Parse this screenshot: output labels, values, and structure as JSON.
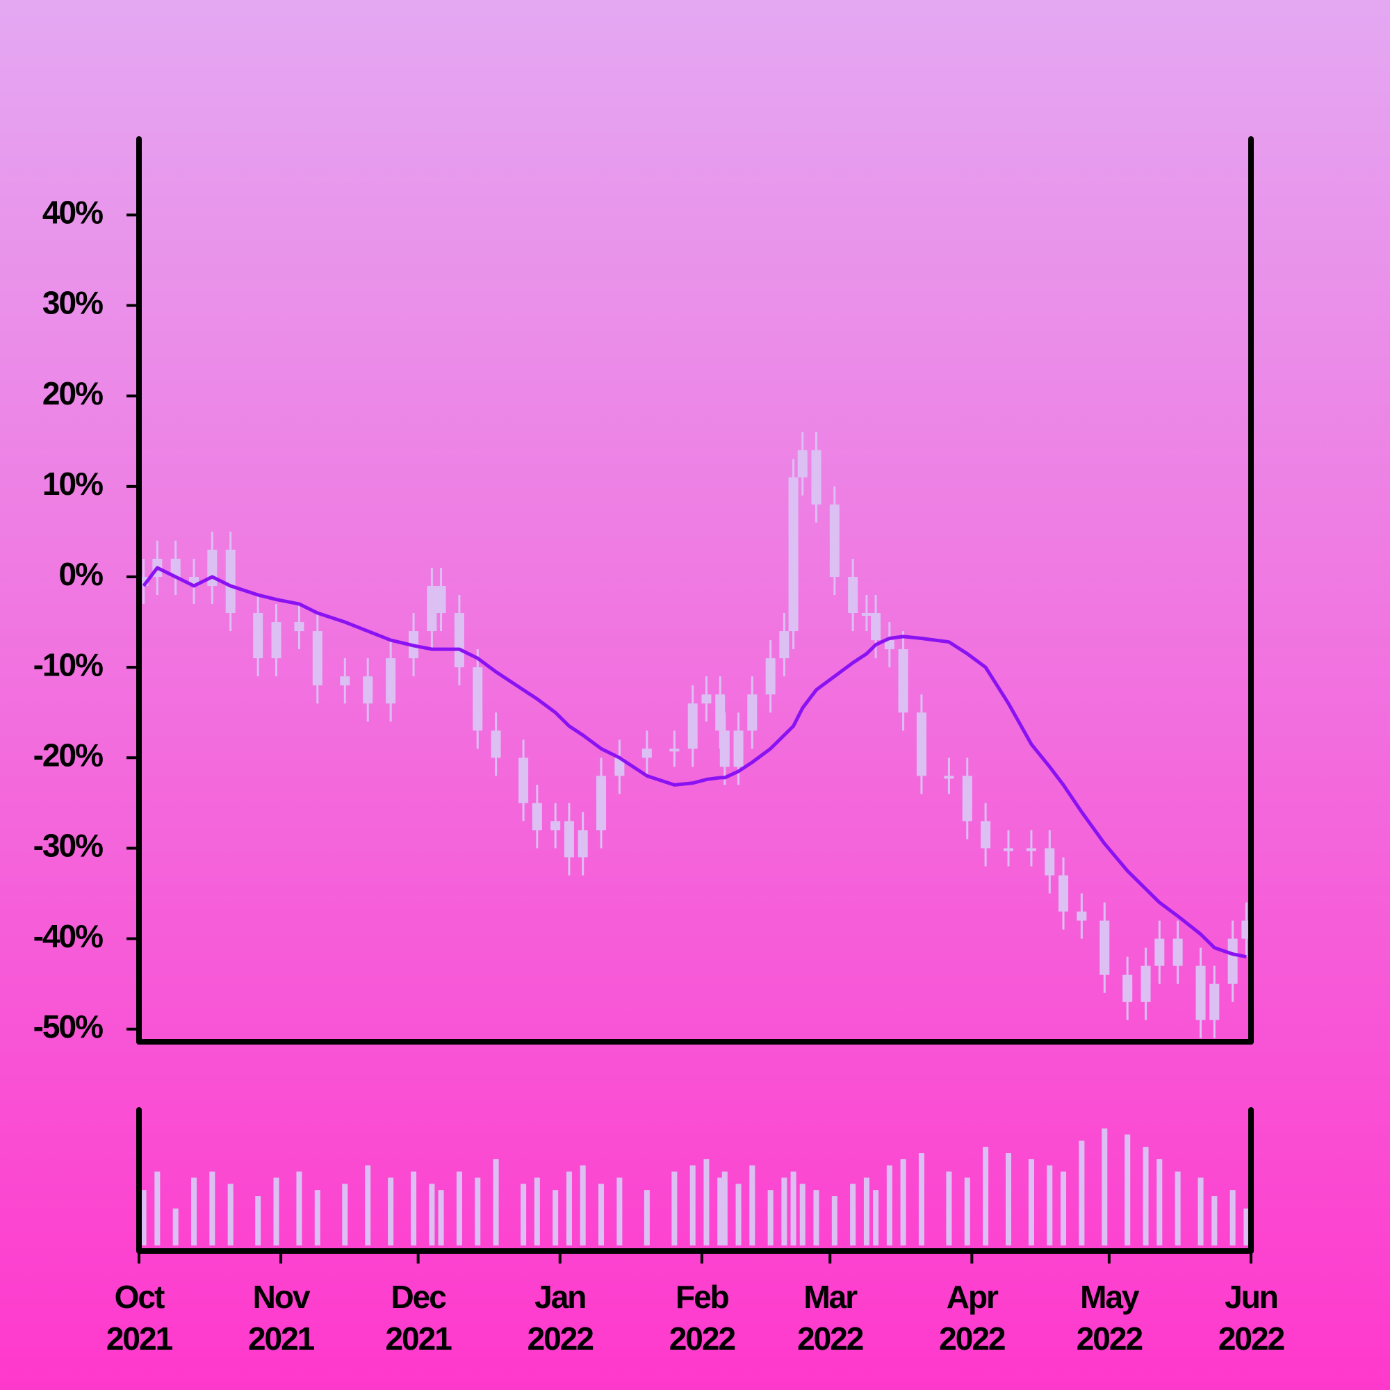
{
  "chart_data": {
    "type": "candlestick",
    "x": [
      1,
      4,
      8,
      12,
      16,
      20,
      26,
      30,
      35,
      39,
      45,
      50,
      55,
      60,
      64,
      66,
      70,
      74,
      78,
      84,
      87,
      91,
      94,
      97,
      101,
      105,
      111,
      117,
      121,
      124,
      127,
      128,
      131,
      134,
      138,
      141,
      143,
      145,
      148,
      152,
      156,
      159,
      161,
      164,
      167,
      171,
      177,
      181,
      185,
      190,
      195,
      199,
      202,
      206,
      211,
      216,
      220,
      223,
      227,
      232,
      235,
      239,
      242
    ],
    "open": [
      -1,
      0,
      2,
      0,
      -1,
      3,
      -4,
      -9,
      -5,
      -6,
      -12,
      -11,
      -14,
      -9,
      -6,
      -1,
      -4,
      -10,
      -17,
      -20,
      -25,
      -28,
      -27,
      -31,
      -28,
      -22,
      -20,
      -19,
      -19,
      -14,
      -13,
      -17,
      -21,
      -17,
      -13,
      -9,
      -6,
      11,
      14,
      8,
      0,
      -4,
      -4,
      -7,
      -8,
      -15,
      -22,
      -22,
      -27,
      -30,
      -30,
      -30,
      -33,
      -37,
      -38,
      -44,
      -47,
      -43,
      -40,
      -43,
      -49,
      -45,
      -40
    ],
    "high": [
      2,
      4,
      4,
      2,
      5,
      5,
      -2,
      -3,
      -3,
      -4,
      -9,
      -9,
      -7,
      -4,
      1,
      1,
      -2,
      -8,
      -15,
      -18,
      -23,
      -25,
      -25,
      -26,
      -20,
      -18,
      -17,
      -17,
      -12,
      -11,
      -11,
      -15,
      -15,
      -11,
      -7,
      -4,
      13,
      16,
      16,
      10,
      2,
      -2,
      -2,
      -5,
      -6,
      -13,
      -20,
      -20,
      -25,
      -28,
      -28,
      -28,
      -31,
      -35,
      -36,
      -42,
      -41,
      -38,
      -38,
      -41,
      -43,
      -38,
      -36
    ],
    "low": [
      -3,
      -2,
      -2,
      -3,
      -3,
      -6,
      -11,
      -11,
      -8,
      -14,
      -14,
      -16,
      -16,
      -11,
      -8,
      -6,
      -12,
      -19,
      -22,
      -27,
      -30,
      -30,
      -33,
      -33,
      -30,
      -24,
      -22,
      -21,
      -21,
      -16,
      -19,
      -23,
      -23,
      -19,
      -15,
      -11,
      -8,
      9,
      6,
      -2,
      -6,
      -6,
      -9,
      -10,
      -17,
      -24,
      -24,
      -29,
      -32,
      -32,
      -32,
      -35,
      -39,
      -40,
      -46,
      -49,
      -49,
      -45,
      -45,
      -51,
      -51,
      -47,
      -42
    ],
    "close": [
      0,
      2,
      0,
      -1,
      3,
      -4,
      -9,
      -5,
      -6,
      -12,
      -11,
      -14,
      -9,
      -6,
      -1,
      -4,
      -10,
      -17,
      -20,
      -25,
      -28,
      -27,
      -31,
      -28,
      -22,
      -20,
      -19,
      -19,
      -14,
      -13,
      -17,
      -21,
      -17,
      -13,
      -9,
      -6,
      11,
      14,
      8,
      0,
      -4,
      -4,
      -7,
      -8,
      -15,
      -22,
      -22,
      -27,
      -30,
      -30,
      -30,
      -33,
      -37,
      -38,
      -44,
      -47,
      -43,
      -40,
      -43,
      -49,
      -45,
      -40,
      -38
    ],
    "color": "#dcc0f4",
    "line": {
      "color": "#8a12f2",
      "values": [
        -1,
        1,
        0,
        -1,
        0,
        -1,
        -2,
        -2.5,
        -3,
        -4,
        -5,
        -6,
        -7,
        -7.6,
        -8,
        -8,
        -8,
        -9,
        -10.5,
        -12.5,
        -13.5,
        -15,
        -16.5,
        -17.5,
        -19,
        -20,
        -22,
        -23,
        -22.8,
        -22.4,
        -22.2,
        -22.2,
        -21.5,
        -20.5,
        -19,
        -17.5,
        -16.5,
        -14.5,
        -12.5,
        -11,
        -9.5,
        -8.5,
        -7.5,
        -6.8,
        -6.6,
        -6.8,
        -7.2,
        -8.5,
        -10,
        -14,
        -18.5,
        -21,
        -23,
        -26,
        -29.5,
        -32.5,
        -34.5,
        -36,
        -37.5,
        -39.5,
        -41,
        -41.7,
        -42
      ]
    },
    "volume": {
      "color": "#dcc0f4",
      "ylim": [
        0,
        110
      ],
      "values": [
        45,
        60,
        30,
        55,
        60,
        50,
        40,
        55,
        60,
        45,
        50,
        65,
        55,
        60,
        50,
        45,
        60,
        55,
        70,
        50,
        55,
        45,
        60,
        65,
        50,
        55,
        45,
        60,
        65,
        70,
        55,
        60,
        50,
        65,
        45,
        55,
        60,
        50,
        45,
        40,
        50,
        55,
        45,
        65,
        70,
        75,
        60,
        55,
        80,
        75,
        70,
        65,
        60,
        85,
        95,
        90,
        80,
        70,
        60,
        55,
        40,
        45,
        30
      ]
    },
    "xlim": [
      0,
      243
    ],
    "xticks": [
      {
        "value": 0,
        "label": "Oct 2021"
      },
      {
        "value": 31,
        "label": "Nov 2021"
      },
      {
        "value": 61,
        "label": "Dec 2021"
      },
      {
        "value": 92,
        "label": "Jan 2022"
      },
      {
        "value": 123,
        "label": "Feb 2022"
      },
      {
        "value": 151,
        "label": "Mar 2022"
      },
      {
        "value": 182,
        "label": "Apr 2022"
      },
      {
        "value": 212,
        "label": "May 2022"
      },
      {
        "value": 243,
        "label": "Jun 2022"
      }
    ],
    "ylim": [
      -51.4,
      48.4
    ],
    "yticks": [
      {
        "value": -50,
        "label": "-50%"
      },
      {
        "value": -40,
        "label": "-40%"
      },
      {
        "value": -30,
        "label": "-30%"
      },
      {
        "value": -20,
        "label": "-20%"
      },
      {
        "value": -10,
        "label": "-10%"
      },
      {
        "value": 0,
        "label": "0%"
      },
      {
        "value": 10,
        "label": "10%"
      },
      {
        "value": 20,
        "label": "20%"
      },
      {
        "value": 30,
        "label": "30%"
      },
      {
        "value": 40,
        "label": "40%"
      }
    ]
  }
}
